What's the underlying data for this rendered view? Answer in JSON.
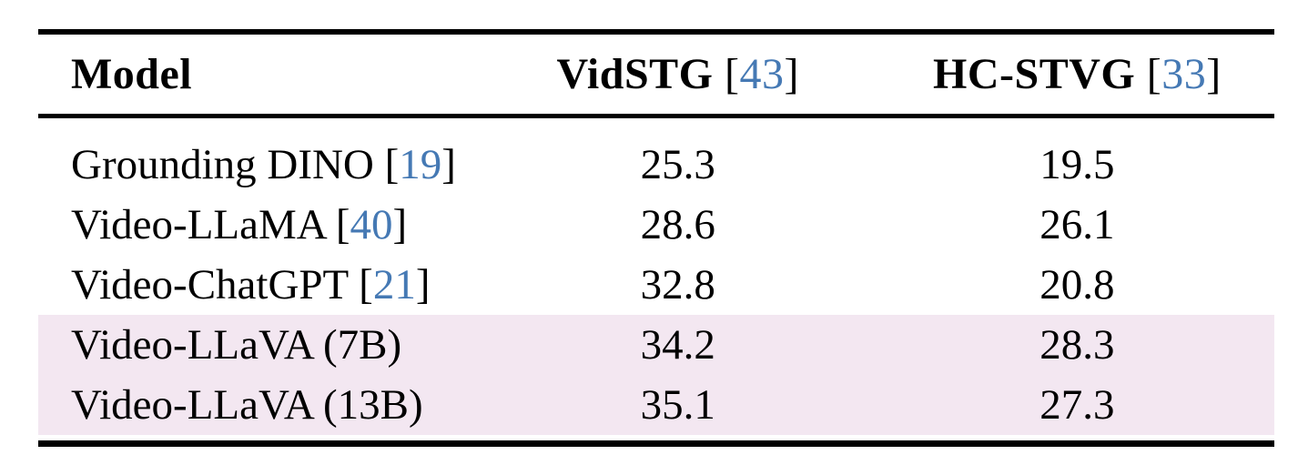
{
  "colors": {
    "background": "#ffffff",
    "text_black": "#000000",
    "rule_black": "#000000",
    "citation_blue": "#4579b4",
    "highlight_pink": "#f3e7f1"
  },
  "table": {
    "header": [
      {
        "label": "Model",
        "cite_open": "",
        "cite": "",
        "cite_close": ""
      },
      {
        "label": "VidSTG",
        "cite_open": " [",
        "cite": "43",
        "cite_close": "]"
      },
      {
        "label": "HC-STVG",
        "cite_open": " [",
        "cite": "33",
        "cite_close": "]"
      }
    ],
    "rows": [
      {
        "model": "Grounding DINO",
        "cite_open": " [",
        "cite": "19",
        "cite_close": "]",
        "vidstg": "25.3",
        "hcstvg": "19.5",
        "highlighted": false
      },
      {
        "model": "Video-LLaMA",
        "cite_open": " [",
        "cite": "40",
        "cite_close": "]",
        "vidstg": "28.6",
        "hcstvg": "26.1",
        "highlighted": false
      },
      {
        "model": "Video-ChatGPT",
        "cite_open": " [",
        "cite": "21",
        "cite_close": "]",
        "vidstg": "32.8",
        "hcstvg": "20.8",
        "highlighted": false
      },
      {
        "model": "Video-LLaVA (7B)",
        "cite_open": "",
        "cite": "",
        "cite_close": "",
        "vidstg": "34.2",
        "hcstvg": "28.3",
        "highlighted": true
      },
      {
        "model": "Video-LLaVA (13B)",
        "cite_open": "",
        "cite": "",
        "cite_close": "",
        "vidstg": "35.1",
        "hcstvg": "27.3",
        "highlighted": true
      }
    ]
  },
  "chart_data": {
    "type": "table",
    "columns": [
      "Model",
      "VidSTG [43]",
      "HC-STVG [33]"
    ],
    "rows": [
      [
        "Grounding DINO [19]",
        25.3,
        19.5
      ],
      [
        "Video-LLaMA [40]",
        28.6,
        26.1
      ],
      [
        "Video-ChatGPT [21]",
        32.8,
        20.8
      ],
      [
        "Video-LLaVA (7B)",
        34.2,
        28.3
      ],
      [
        "Video-LLaVA (13B)",
        35.1,
        27.3
      ]
    ],
    "highlighted_rows": [
      3,
      4
    ]
  }
}
